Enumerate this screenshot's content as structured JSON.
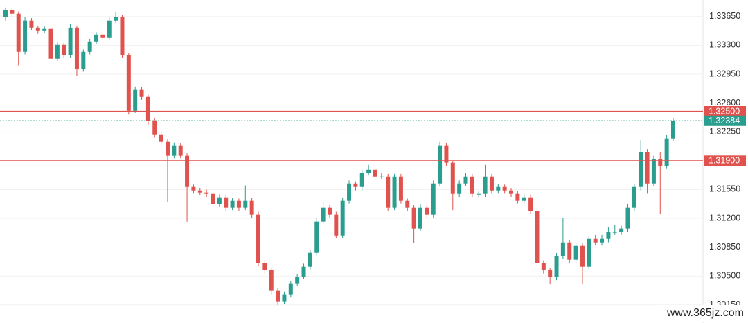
{
  "chart_data": {
    "type": "candlestick",
    "up_color": "#2a9d8f",
    "down_color": "#e0524d",
    "grid": true,
    "ylim": [
      1.2993,
      1.3385
    ],
    "yticks": [
      {
        "value": 1.3365,
        "label": "1.33650"
      },
      {
        "value": 1.333,
        "label": "1.33300"
      },
      {
        "value": 1.3295,
        "label": "1.32950"
      },
      {
        "value": 1.326,
        "label": "1.32600"
      },
      {
        "value": 1.3225,
        "label": "1.32250"
      },
      {
        "value": 1.3155,
        "label": "1.31550"
      },
      {
        "value": 1.312,
        "label": "1.31200"
      },
      {
        "value": 1.3085,
        "label": "1.30850"
      },
      {
        "value": 1.305,
        "label": "1.30500"
      },
      {
        "value": 1.3015,
        "label": "1.30150"
      }
    ],
    "levels": [
      {
        "value": 1.325,
        "label": "1.32500",
        "color": "#e0524d",
        "style": "solid"
      },
      {
        "value": 1.32384,
        "label": "1.32384",
        "color": "#2a9d8f",
        "style": "dotted"
      },
      {
        "value": 1.319,
        "label": "1.31900",
        "color": "#e0524d",
        "style": "solid"
      }
    ],
    "watermark": "www.365jz.com",
    "open": [
      1.33642,
      1.33726,
      1.33684,
      1.33221,
      1.336,
      1.33515,
      1.33473,
      1.33499,
      1.33137,
      1.33305,
      1.33179,
      1.33515,
      1.33011,
      1.33221,
      1.33347,
      1.33431,
      1.33389,
      1.336,
      1.33642,
      1.33179,
      1.32506,
      1.32759,
      1.32674,
      1.3238,
      1.32212,
      1.32128,
      1.3196,
      1.32086,
      1.3196,
      1.31581,
      1.31539,
      1.31514,
      1.31497,
      1.31371,
      1.31455,
      1.31329,
      1.31413,
      1.31329,
      1.31413,
      1.31245,
      1.30656,
      1.30572,
      1.3032,
      1.30194,
      1.30278,
      1.30404,
      1.30488,
      1.30614,
      1.30782,
      1.31161,
      1.31329,
      1.31245,
      1.30992,
      1.31413,
      1.31623,
      1.31581,
      1.31749,
      1.31791,
      1.31707,
      1.31707,
      1.31329,
      1.31707,
      1.31413,
      1.31329,
      1.31077,
      1.31329,
      1.31245,
      1.31623,
      1.32086,
      1.31876,
      1.31497,
      1.31623,
      1.31707,
      1.31497,
      1.31497,
      1.31707,
      1.31539,
      1.31581,
      1.31539,
      1.31497,
      1.31413,
      1.31455,
      1.31287,
      1.30656,
      1.30572,
      1.30488,
      1.3074,
      1.30908,
      1.30698,
      1.30866,
      1.30614,
      1.3095,
      1.30908,
      1.3095,
      1.31035,
      1.31035,
      1.31077,
      1.31329,
      1.31581,
      1.32002,
      1.31623,
      1.31918,
      1.31833,
      1.3217
    ],
    "high": [
      1.3376,
      1.33752,
      1.3371,
      1.3364,
      1.3363,
      1.3354,
      1.3353,
      1.3352,
      1.3334,
      1.3333,
      1.3356,
      1.3354,
      1.3325,
      1.3338,
      1.3346,
      1.3346,
      1.3364,
      1.337,
      1.3367,
      1.3321,
      1.328,
      1.3279,
      1.327,
      1.3242,
      1.3225,
      1.3216,
      1.3212,
      1.3211,
      1.3199,
      1.3161,
      1.3157,
      1.3155,
      1.3153,
      1.3149,
      1.3148,
      1.3145,
      1.3144,
      1.316,
      1.3145,
      1.3128,
      1.3069,
      1.306,
      1.3035,
      1.3031,
      1.3044,
      1.3052,
      1.3065,
      1.3082,
      1.312,
      1.314,
      1.3136,
      1.3128,
      1.3145,
      1.3166,
      1.3165,
      1.3179,
      1.3185,
      1.3182,
      1.3175,
      1.3174,
      1.3174,
      1.3174,
      1.3144,
      1.3136,
      1.3137,
      1.3136,
      1.3166,
      1.32128,
      1.3211,
      1.319,
      1.3166,
      1.3175,
      1.3174,
      1.3153,
      1.3185,
      1.3174,
      1.3162,
      1.3161,
      1.3157,
      1.3153,
      1.3149,
      1.3149,
      1.3132,
      1.3069,
      1.306,
      1.3078,
      1.312,
      1.3094,
      1.309,
      1.309,
      1.3099,
      1.31,
      1.31,
      1.311,
      1.3112,
      1.3111,
      1.3137,
      1.3162,
      1.3215,
      1.3204,
      1.3196,
      1.32,
      1.3221,
      1.3242
    ],
    "low": [
      1.336,
      1.3365,
      1.33054,
      1.3319,
      1.3348,
      1.3344,
      1.3345,
      1.331,
      1.3311,
      1.3315,
      1.3315,
      1.3293,
      1.3298,
      1.3319,
      1.3332,
      1.3336,
      1.3336,
      1.3357,
      1.3315,
      1.3246,
      1.3248,
      1.3264,
      1.3233,
      1.3218,
      1.3209,
      1.314,
      1.3193,
      1.3193,
      1.3116,
      1.315,
      1.3148,
      1.3146,
      1.312,
      1.3134,
      1.3129,
      1.313,
      1.3129,
      1.313,
      1.312,
      1.3062,
      1.3053,
      1.3028,
      1.3015,
      1.3016,
      1.3024,
      1.3038,
      1.3046,
      1.3058,
      1.3075,
      1.3113,
      1.3121,
      1.3096,
      1.3096,
      1.3138,
      1.3154,
      1.3154,
      1.3172,
      1.3168,
      1.3168,
      1.3129,
      1.313,
      1.3138,
      1.3129,
      1.309,
      1.3105,
      1.3121,
      1.3121,
      1.3159,
      1.3184,
      1.313,
      1.3146,
      1.3159,
      1.3146,
      1.3146,
      1.3146,
      1.315,
      1.315,
      1.315,
      1.3146,
      1.3138,
      1.3138,
      1.3125,
      1.3062,
      1.3053,
      1.304,
      1.3045,
      1.3071,
      1.3066,
      1.3066,
      1.304,
      1.3058,
      1.3087,
      1.3087,
      1.3091,
      1.31,
      1.31,
      1.3104,
      1.3129,
      1.3154,
      1.315,
      1.3159,
      1.3125,
      1.318,
      1.3214
    ],
    "close": [
      1.33726,
      1.33684,
      1.33221,
      1.336,
      1.33515,
      1.33473,
      1.33499,
      1.33137,
      1.33305,
      1.33179,
      1.33515,
      1.33011,
      1.33221,
      1.33347,
      1.33431,
      1.33389,
      1.336,
      1.33642,
      1.33179,
      1.32506,
      1.32759,
      1.32674,
      1.3238,
      1.32212,
      1.32128,
      1.3196,
      1.32086,
      1.3196,
      1.31581,
      1.31539,
      1.31514,
      1.31497,
      1.31371,
      1.31455,
      1.31329,
      1.31413,
      1.31329,
      1.31413,
      1.31245,
      1.30656,
      1.30572,
      1.3032,
      1.30194,
      1.30278,
      1.30404,
      1.30488,
      1.30614,
      1.30782,
      1.31161,
      1.31329,
      1.31245,
      1.30992,
      1.31413,
      1.31623,
      1.31581,
      1.31749,
      1.31791,
      1.31707,
      1.31707,
      1.31329,
      1.31707,
      1.31413,
      1.31329,
      1.31077,
      1.31329,
      1.31245,
      1.31623,
      1.32086,
      1.31876,
      1.31497,
      1.31623,
      1.31707,
      1.31497,
      1.31497,
      1.31707,
      1.31539,
      1.31581,
      1.31539,
      1.31497,
      1.31413,
      1.31455,
      1.31287,
      1.30656,
      1.30572,
      1.30488,
      1.3074,
      1.30908,
      1.30698,
      1.30866,
      1.30614,
      1.3095,
      1.30908,
      1.3095,
      1.31035,
      1.31035,
      1.31077,
      1.31329,
      1.31581,
      1.32002,
      1.31623,
      1.31918,
      1.31833,
      1.3217,
      1.32384
    ]
  }
}
